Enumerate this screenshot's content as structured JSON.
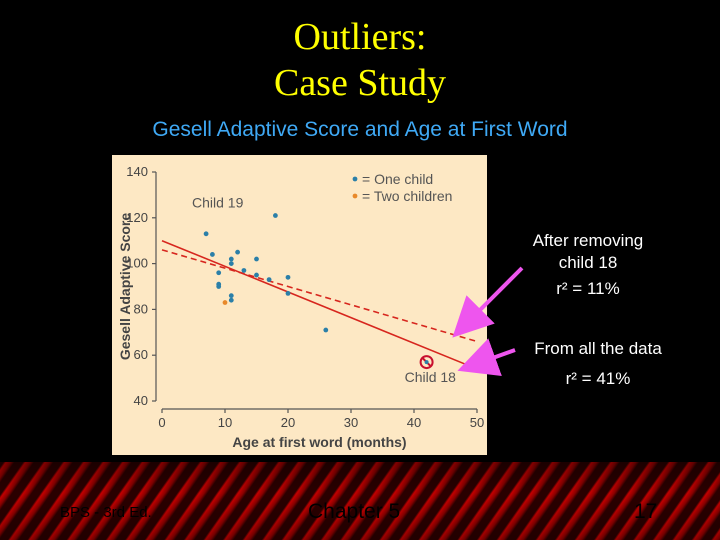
{
  "slide": {
    "title_line1": "Outliers:",
    "title_line2": "Case Study",
    "subtitle": "Gesell Adaptive Score and Age at First Word",
    "annotation_removed_line1": "After removing",
    "annotation_removed_line2": "child 18",
    "annotation_removed_r2": "r² = 11%",
    "annotation_all_line1": "From all the data",
    "annotation_all_r2": "r² = 41%",
    "footer_left": "BPS - 3rd Ed.",
    "footer_center": "Chapter 5",
    "footer_right": "17",
    "colors": {
      "title": "#ffff00",
      "subtitle": "#3fa9f5",
      "arrow": "#ee55ee",
      "panel_bg": "#fde8c4",
      "one_child": "#2b7fa8",
      "two_children": "#e8892a",
      "fit_line": "#d7261e",
      "outlier_marker": "#c8102e"
    }
  },
  "chart_data": {
    "type": "scatter",
    "xlabel": "Age at first word (months)",
    "ylabel": "Gesell Adaptive Score",
    "xlim": [
      0,
      50
    ],
    "ylim": [
      40,
      140
    ],
    "xticks": [
      "0",
      "10",
      "20",
      "30",
      "40",
      "50"
    ],
    "yticks": [
      "40",
      "60",
      "80",
      "100",
      "120",
      "140"
    ],
    "legend": [
      {
        "label": "= One child",
        "color": "#2b7fa8"
      },
      {
        "label": "= Two children",
        "color": "#e8892a"
      }
    ],
    "legend_position": "top-right",
    "points_one_child": [
      [
        7,
        113
      ],
      [
        8,
        104
      ],
      [
        9,
        96
      ],
      [
        9,
        91
      ],
      [
        9,
        90
      ],
      [
        11,
        102
      ],
      [
        11,
        100
      ],
      [
        11,
        86
      ],
      [
        11,
        84
      ],
      [
        12,
        105
      ],
      [
        13,
        97
      ],
      [
        15,
        95
      ],
      [
        15,
        102
      ],
      [
        17,
        93
      ],
      [
        18,
        121
      ],
      [
        20,
        94
      ],
      [
        20,
        87
      ],
      [
        26,
        71
      ]
    ],
    "points_two_children": [
      [
        10,
        83
      ]
    ],
    "outlier_point": [
      42,
      57
    ],
    "fit_lines": [
      {
        "name": "From all the data",
        "style": "solid",
        "x": [
          0,
          50
        ],
        "y": [
          110,
          54
        ]
      },
      {
        "name": "After removing child 18",
        "style": "dashed",
        "x": [
          0,
          50
        ],
        "y": [
          106,
          66
        ]
      }
    ],
    "annotations": [
      {
        "text": "Child 19",
        "x": 18,
        "y": 121
      },
      {
        "text": "Child 18",
        "x": 42,
        "y": 57
      }
    ]
  }
}
